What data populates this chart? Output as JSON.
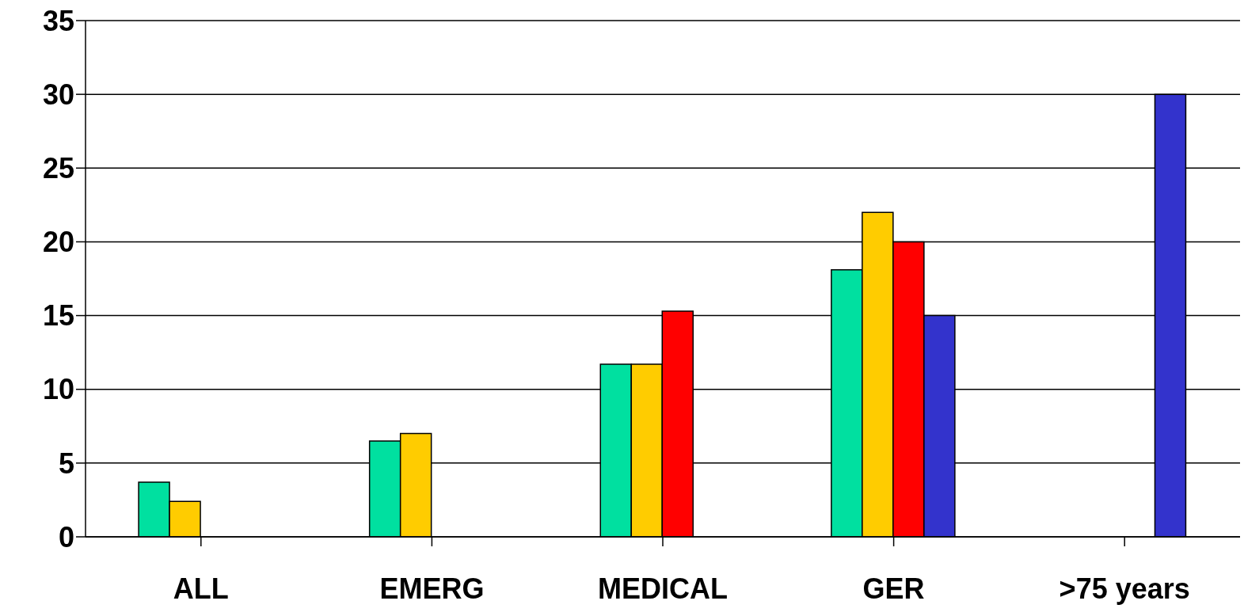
{
  "chart_data": {
    "type": "bar",
    "categories": [
      "ALL",
      "EMERG",
      "MEDICAL",
      "GER",
      ">75 years"
    ],
    "series": [
      {
        "color": "#00e0a0",
        "values": [
          3.7,
          6.5,
          11.7,
          18.1,
          null
        ]
      },
      {
        "color": "#ffcc00",
        "values": [
          2.4,
          7.0,
          11.7,
          22.0,
          null
        ]
      },
      {
        "color": "#ff0000",
        "values": [
          null,
          null,
          15.3,
          20.0,
          null
        ]
      },
      {
        "color": "#3333cc",
        "values": [
          null,
          null,
          null,
          15.0,
          30.0
        ]
      }
    ],
    "ylim": [
      0,
      35
    ],
    "yticks": [
      0,
      5,
      10,
      15,
      20,
      25,
      30,
      35
    ],
    "grid": "y"
  }
}
